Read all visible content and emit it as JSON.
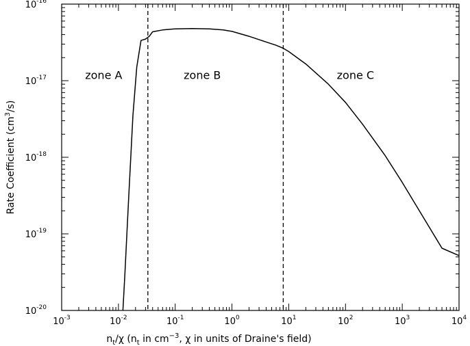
{
  "chart_data": {
    "type": "line",
    "xscale": "log",
    "yscale": "log",
    "xlim": [
      0.001,
      10000
    ],
    "ylim": [
      1e-20,
      1e-16
    ],
    "grid": false,
    "legend": "none",
    "xlabel": {
      "parts": [
        "n",
        "t",
        "/χ (n",
        "t",
        " in cm",
        "−3",
        ", χ in units of Draine's field)"
      ]
    },
    "ylabel": {
      "parts": [
        "Rate Coefficient (cm",
        "3",
        "/s)"
      ]
    },
    "x_ticks": [
      {
        "value": 0.001,
        "base": "10",
        "exp": "-3"
      },
      {
        "value": 0.01,
        "base": "10",
        "exp": "-2"
      },
      {
        "value": 0.1,
        "base": "10",
        "exp": "-1"
      },
      {
        "value": 1,
        "base": "10",
        "exp": "0"
      },
      {
        "value": 10,
        "base": "10",
        "exp": "1"
      },
      {
        "value": 100,
        "base": "10",
        "exp": "2"
      },
      {
        "value": 1000,
        "base": "10",
        "exp": "3"
      },
      {
        "value": 10000,
        "base": "10",
        "exp": "4"
      }
    ],
    "y_ticks": [
      {
        "value": 1e-20,
        "base": "10",
        "exp": "-20"
      },
      {
        "value": 1e-19,
        "base": "10",
        "exp": "-19"
      },
      {
        "value": 1e-18,
        "base": "10",
        "exp": "-18"
      },
      {
        "value": 1e-17,
        "base": "10",
        "exp": "-17"
      },
      {
        "value": 1e-16,
        "base": "10",
        "exp": "-16"
      }
    ],
    "vlines": [
      0.033,
      8.0
    ],
    "zones": [
      {
        "label": "zone A",
        "x": 0.0055,
        "y": 1.05e-17
      },
      {
        "label": "zone B",
        "x": 0.3,
        "y": 1.05e-17
      },
      {
        "label": "zone C",
        "x": 150,
        "y": 1.05e-17
      }
    ],
    "series": [
      {
        "x": [
          0.012,
          0.013,
          0.015,
          0.018,
          0.021,
          0.025,
          0.03,
          0.035,
          0.04,
          0.06,
          0.1,
          0.2,
          0.4,
          0.7,
          1.0,
          2.0,
          4.0,
          6.0,
          8.0,
          10,
          20,
          50,
          100,
          200,
          500,
          1000,
          2000,
          5000,
          10000
        ],
        "y": [
          1e-20,
          3e-20,
          2.5e-19,
          3.5e-18,
          1.5e-17,
          3.35e-17,
          3.5e-17,
          3.8e-17,
          4.35e-17,
          4.6e-17,
          4.75e-17,
          4.8e-17,
          4.75e-17,
          4.6e-17,
          4.4e-17,
          3.8e-17,
          3.2e-17,
          2.9e-17,
          2.65e-17,
          2.4e-17,
          1.65e-17,
          9e-18,
          5.2e-18,
          2.7e-18,
          1.05e-18,
          4.7e-19,
          2e-19,
          6.5e-20,
          5.2e-20
        ]
      }
    ]
  }
}
